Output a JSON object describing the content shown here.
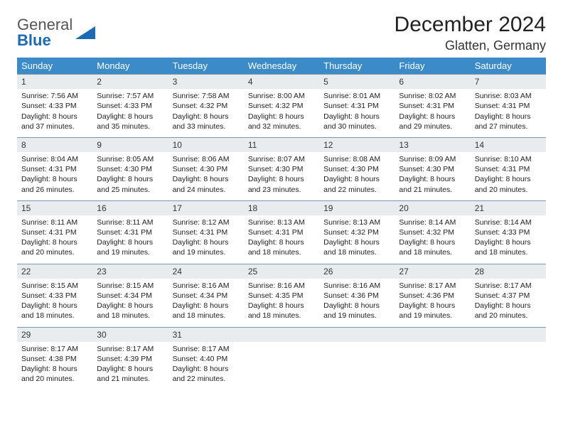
{
  "brand": {
    "word1": "General",
    "word2": "Blue",
    "triangle_color": "#1b6ab2"
  },
  "title": "December 2024",
  "location": "Glatten, Germany",
  "header_bg": "#3b8bc9",
  "daynum_bg": "#e9ecef",
  "border_color": "#7a99b0",
  "weekdays": [
    "Sunday",
    "Monday",
    "Tuesday",
    "Wednesday",
    "Thursday",
    "Friday",
    "Saturday"
  ],
  "weeks": [
    [
      {
        "n": "1",
        "sr": "7:56 AM",
        "ss": "4:33 PM",
        "dl": "8 hours and 37 minutes."
      },
      {
        "n": "2",
        "sr": "7:57 AM",
        "ss": "4:33 PM",
        "dl": "8 hours and 35 minutes."
      },
      {
        "n": "3",
        "sr": "7:58 AM",
        "ss": "4:32 PM",
        "dl": "8 hours and 33 minutes."
      },
      {
        "n": "4",
        "sr": "8:00 AM",
        "ss": "4:32 PM",
        "dl": "8 hours and 32 minutes."
      },
      {
        "n": "5",
        "sr": "8:01 AM",
        "ss": "4:31 PM",
        "dl": "8 hours and 30 minutes."
      },
      {
        "n": "6",
        "sr": "8:02 AM",
        "ss": "4:31 PM",
        "dl": "8 hours and 29 minutes."
      },
      {
        "n": "7",
        "sr": "8:03 AM",
        "ss": "4:31 PM",
        "dl": "8 hours and 27 minutes."
      }
    ],
    [
      {
        "n": "8",
        "sr": "8:04 AM",
        "ss": "4:31 PM",
        "dl": "8 hours and 26 minutes."
      },
      {
        "n": "9",
        "sr": "8:05 AM",
        "ss": "4:30 PM",
        "dl": "8 hours and 25 minutes."
      },
      {
        "n": "10",
        "sr": "8:06 AM",
        "ss": "4:30 PM",
        "dl": "8 hours and 24 minutes."
      },
      {
        "n": "11",
        "sr": "8:07 AM",
        "ss": "4:30 PM",
        "dl": "8 hours and 23 minutes."
      },
      {
        "n": "12",
        "sr": "8:08 AM",
        "ss": "4:30 PM",
        "dl": "8 hours and 22 minutes."
      },
      {
        "n": "13",
        "sr": "8:09 AM",
        "ss": "4:30 PM",
        "dl": "8 hours and 21 minutes."
      },
      {
        "n": "14",
        "sr": "8:10 AM",
        "ss": "4:31 PM",
        "dl": "8 hours and 20 minutes."
      }
    ],
    [
      {
        "n": "15",
        "sr": "8:11 AM",
        "ss": "4:31 PM",
        "dl": "8 hours and 20 minutes."
      },
      {
        "n": "16",
        "sr": "8:11 AM",
        "ss": "4:31 PM",
        "dl": "8 hours and 19 minutes."
      },
      {
        "n": "17",
        "sr": "8:12 AM",
        "ss": "4:31 PM",
        "dl": "8 hours and 19 minutes."
      },
      {
        "n": "18",
        "sr": "8:13 AM",
        "ss": "4:31 PM",
        "dl": "8 hours and 18 minutes."
      },
      {
        "n": "19",
        "sr": "8:13 AM",
        "ss": "4:32 PM",
        "dl": "8 hours and 18 minutes."
      },
      {
        "n": "20",
        "sr": "8:14 AM",
        "ss": "4:32 PM",
        "dl": "8 hours and 18 minutes."
      },
      {
        "n": "21",
        "sr": "8:14 AM",
        "ss": "4:33 PM",
        "dl": "8 hours and 18 minutes."
      }
    ],
    [
      {
        "n": "22",
        "sr": "8:15 AM",
        "ss": "4:33 PM",
        "dl": "8 hours and 18 minutes."
      },
      {
        "n": "23",
        "sr": "8:15 AM",
        "ss": "4:34 PM",
        "dl": "8 hours and 18 minutes."
      },
      {
        "n": "24",
        "sr": "8:16 AM",
        "ss": "4:34 PM",
        "dl": "8 hours and 18 minutes."
      },
      {
        "n": "25",
        "sr": "8:16 AM",
        "ss": "4:35 PM",
        "dl": "8 hours and 18 minutes."
      },
      {
        "n": "26",
        "sr": "8:16 AM",
        "ss": "4:36 PM",
        "dl": "8 hours and 19 minutes."
      },
      {
        "n": "27",
        "sr": "8:17 AM",
        "ss": "4:36 PM",
        "dl": "8 hours and 19 minutes."
      },
      {
        "n": "28",
        "sr": "8:17 AM",
        "ss": "4:37 PM",
        "dl": "8 hours and 20 minutes."
      }
    ],
    [
      {
        "n": "29",
        "sr": "8:17 AM",
        "ss": "4:38 PM",
        "dl": "8 hours and 20 minutes."
      },
      {
        "n": "30",
        "sr": "8:17 AM",
        "ss": "4:39 PM",
        "dl": "8 hours and 21 minutes."
      },
      {
        "n": "31",
        "sr": "8:17 AM",
        "ss": "4:40 PM",
        "dl": "8 hours and 22 minutes."
      },
      {
        "empty": true
      },
      {
        "empty": true
      },
      {
        "empty": true
      },
      {
        "empty": true
      }
    ]
  ],
  "labels": {
    "sunrise": "Sunrise: ",
    "sunset": "Sunset: ",
    "daylight": "Daylight: "
  }
}
